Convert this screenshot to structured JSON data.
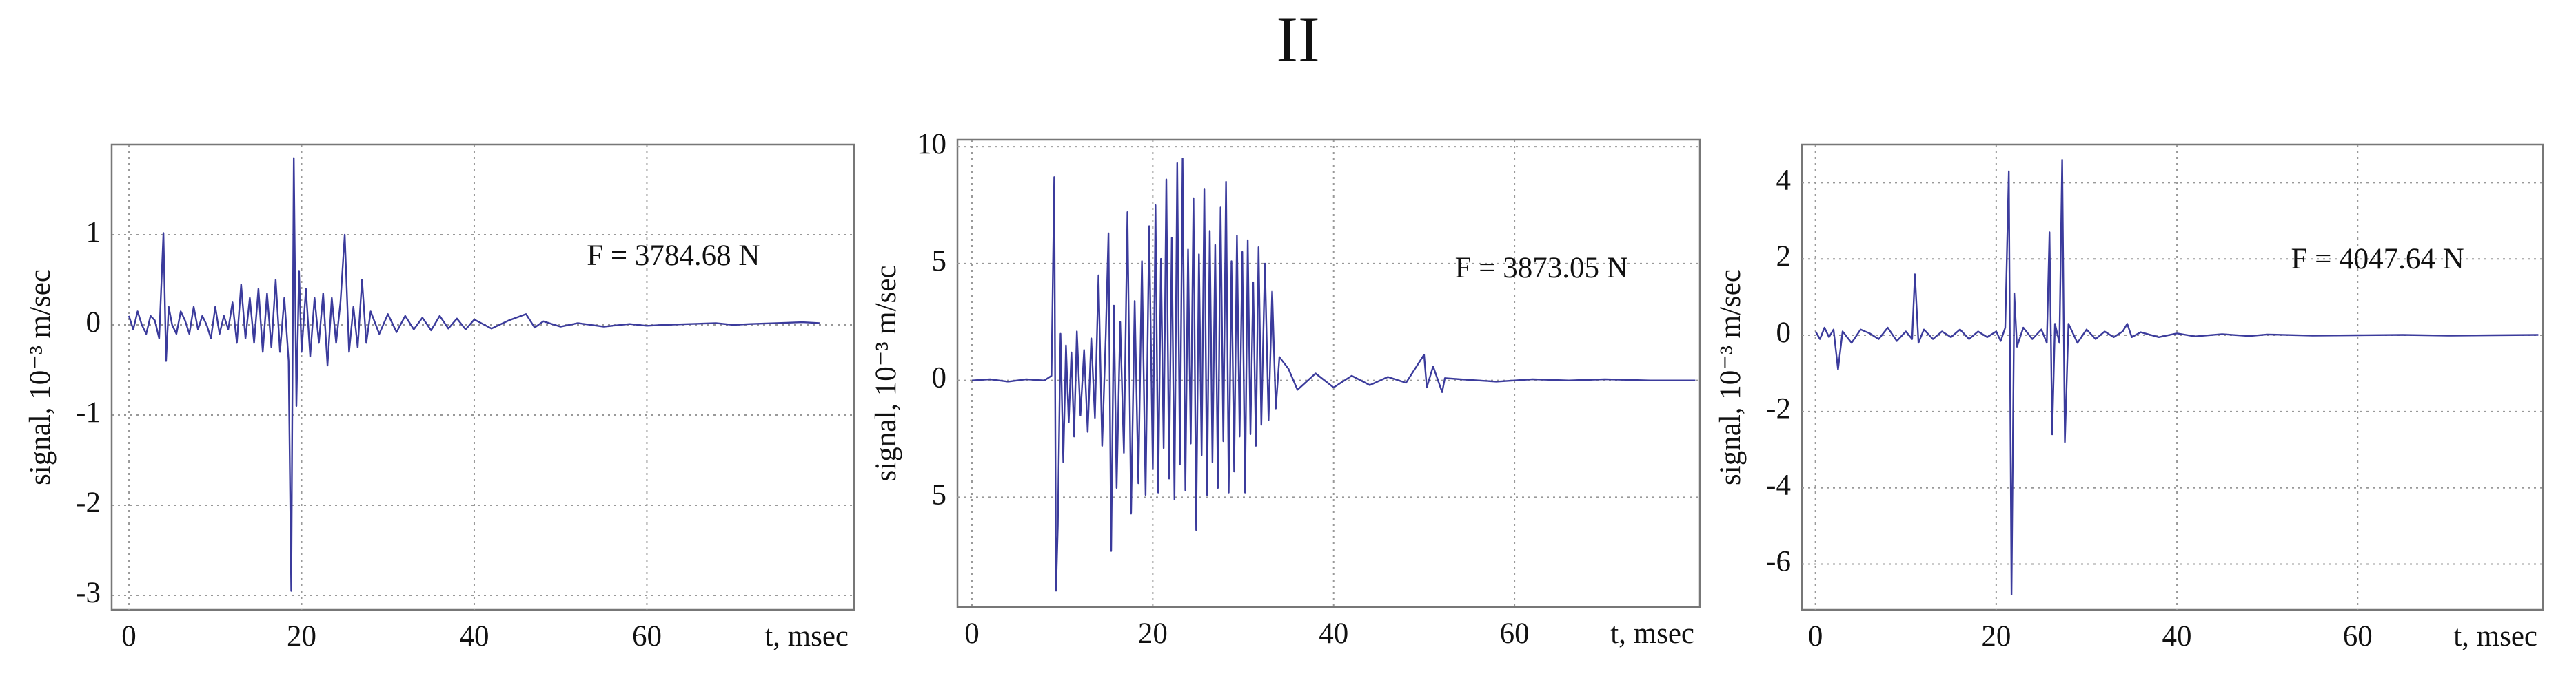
{
  "title": "II",
  "chart_data": [
    {
      "type": "line",
      "ylabel": "signal, 10⁻³ m/sec",
      "xlabel": "t, msec",
      "annotation": "F = 3784.68 N",
      "color": "#3b3b9c",
      "grid": true,
      "xlim": [
        -2,
        84
      ],
      "ylim": [
        -3.16,
        2.0
      ],
      "xticks": [
        0,
        20,
        40,
        60
      ],
      "yticks": [
        1,
        0,
        -1,
        -2,
        -3
      ],
      "x": [
        0,
        0.5,
        1,
        1.5,
        2,
        2.5,
        3,
        3.5,
        4,
        4.3,
        4.6,
        5,
        5.5,
        6,
        6.5,
        7,
        7.5,
        8,
        8.5,
        9,
        9.5,
        10,
        10.5,
        11,
        11.5,
        12,
        12.5,
        13,
        13.5,
        14,
        14.5,
        15,
        15.5,
        16,
        16.5,
        17,
        17.5,
        18,
        18.5,
        18.8,
        19.1,
        19.4,
        19.7,
        20,
        20.5,
        21,
        21.5,
        22,
        22.5,
        23,
        23.5,
        24,
        24.5,
        25,
        25.5,
        26,
        26.5,
        27,
        27.5,
        28,
        29,
        30,
        31,
        32,
        33,
        34,
        35,
        36,
        37,
        38,
        39,
        40,
        42,
        44,
        46,
        47,
        48,
        50,
        52,
        55,
        58,
        60,
        62,
        65,
        68,
        70,
        72,
        75,
        78,
        80
      ],
      "values": [
        0.1,
        -0.05,
        0.15,
        0,
        -0.1,
        0.1,
        0.05,
        -0.15,
        1.02,
        -0.4,
        0.2,
        0,
        -0.1,
        0.15,
        0.05,
        -0.1,
        0.2,
        -0.05,
        0.1,
        0,
        -0.15,
        0.2,
        -0.1,
        0.1,
        -0.05,
        0.25,
        -0.2,
        0.45,
        -0.15,
        0.3,
        -0.2,
        0.4,
        -0.3,
        0.35,
        -0.25,
        0.5,
        -0.3,
        0.3,
        -0.4,
        -2.95,
        1.85,
        -0.9,
        0.6,
        -0.3,
        0.4,
        -0.35,
        0.3,
        -0.2,
        0.35,
        -0.45,
        0.3,
        -0.2,
        0.25,
        1,
        -0.3,
        0.2,
        -0.25,
        0.5,
        -0.2,
        0.15,
        -0.1,
        0.12,
        -0.08,
        0.1,
        -0.05,
        0.08,
        -0.06,
        0.1,
        -0.04,
        0.07,
        -0.05,
        0.06,
        -0.04,
        0.05,
        0.12,
        -0.03,
        0.04,
        -0.02,
        0.02,
        -0.02,
        0.01,
        -0.01,
        0,
        0.01,
        0.02,
        0,
        0.01,
        0.02,
        0.03,
        0.02
      ]
    },
    {
      "type": "line",
      "ylabel": "signal, 10⁻³ m/sec",
      "xlabel": "t, msec",
      "annotation": "F = 3873.05 N",
      "color": "#3b3b9c",
      "grid": true,
      "xlim": [
        -1.6,
        80.5
      ],
      "ylim": [
        -9.7,
        10.3
      ],
      "xticks": [
        0,
        20,
        40,
        60
      ],
      "yticks": [
        10,
        5,
        0,
        {
          "value": -5,
          "label": "5"
        }
      ],
      "x": [
        0,
        2,
        4,
        6,
        8,
        8.8,
        9.1,
        9.3,
        9.5,
        9.8,
        10.1,
        10.4,
        10.7,
        11,
        11.3,
        11.6,
        12,
        12.4,
        12.8,
        13.2,
        13.6,
        14,
        14.4,
        14.8,
        15.1,
        15.4,
        15.7,
        16,
        16.4,
        16.8,
        17.2,
        17.6,
        18,
        18.4,
        18.8,
        19.2,
        19.6,
        20,
        20.3,
        20.6,
        20.9,
        21.2,
        21.5,
        21.8,
        22.1,
        22.4,
        22.7,
        23,
        23.3,
        23.6,
        23.9,
        24.2,
        24.5,
        24.8,
        25.1,
        25.4,
        25.7,
        26,
        26.3,
        26.6,
        26.9,
        27.2,
        27.5,
        27.8,
        28.1,
        28.4,
        28.7,
        29,
        29.3,
        29.6,
        29.9,
        30.2,
        30.5,
        30.8,
        31.1,
        31.4,
        31.7,
        32,
        32.4,
        32.8,
        33.2,
        33.6,
        34,
        35,
        36,
        38,
        40,
        42,
        44,
        46,
        48,
        50,
        50.3,
        51,
        52,
        52.3,
        54,
        58,
        62,
        66,
        70,
        75,
        80
      ],
      "values": [
        0,
        0.05,
        -0.05,
        0.05,
        0,
        0.2,
        8.7,
        -9,
        -6.2,
        2,
        -3.5,
        1.5,
        -1.8,
        1.2,
        -2.4,
        2.1,
        -1.5,
        1.3,
        -2.2,
        1.8,
        -1.6,
        4.5,
        -2.8,
        1.9,
        6.3,
        -7.3,
        3.2,
        -4.6,
        2.5,
        -3.1,
        7.2,
        -5.7,
        3.4,
        -4.4,
        5.1,
        -4.9,
        6.6,
        -3.8,
        7.5,
        -4.8,
        5.2,
        -2.9,
        8.6,
        -4.2,
        6.1,
        -5.1,
        9.3,
        -3.6,
        9.5,
        -4.7,
        5.6,
        -2.7,
        7.8,
        -6.4,
        5.4,
        -3.2,
        8.2,
        -4.9,
        6.4,
        -3.5,
        5.8,
        -4.6,
        7.4,
        -2.6,
        8.5,
        -4.8,
        5.1,
        -3.9,
        6.2,
        -2.4,
        5.5,
        -4.8,
        6,
        -2.3,
        4.2,
        -2.8,
        5.7,
        -1.9,
        5,
        -1.7,
        3.8,
        -1.2,
        1,
        0.5,
        -0.4,
        0.3,
        -0.3,
        0.2,
        -0.2,
        0.15,
        -0.1,
        1.1,
        -0.3,
        0.6,
        -0.5,
        0.1,
        0.05,
        -0.05,
        0.05,
        0,
        0.05,
        0,
        0
      ]
    },
    {
      "type": "line",
      "ylabel": "signal, 10⁻³ m/sec",
      "xlabel": "t, msec",
      "annotation": "F = 4047.64 N",
      "color": "#3b3b9c",
      "grid": true,
      "xlim": [
        -1.5,
        80.5
      ],
      "ylim": [
        -7.2,
        5.0
      ],
      "xticks": [
        0,
        20,
        40,
        60
      ],
      "yticks": [
        4,
        2,
        0,
        -2,
        -4,
        -6
      ],
      "x": [
        0,
        0.5,
        1,
        1.5,
        2,
        2.5,
        3,
        4,
        5,
        6,
        7,
        8,
        9,
        10,
        10.7,
        11,
        11.4,
        12,
        13,
        14,
        15,
        16,
        17,
        18,
        19,
        20,
        20.5,
        21,
        21.4,
        21.7,
        22,
        22.3,
        23,
        24,
        25,
        25.6,
        25.9,
        26.2,
        26.5,
        27,
        27.3,
        27.6,
        28,
        29,
        30,
        31,
        32,
        33,
        34,
        34.5,
        35,
        36,
        38,
        40,
        42,
        45,
        48,
        50,
        55,
        60,
        65,
        70,
        75,
        80
      ],
      "values": [
        0.1,
        -0.1,
        0.2,
        -0.05,
        0.15,
        -0.9,
        0.1,
        -0.2,
        0.15,
        0.05,
        -0.1,
        0.2,
        -0.15,
        0.1,
        -0.1,
        1.6,
        -0.2,
        0.15,
        -0.1,
        0.1,
        -0.05,
        0.15,
        -0.1,
        0.1,
        -0.05,
        0.1,
        -0.15,
        0.2,
        4.3,
        -6.8,
        1.1,
        -0.3,
        0.2,
        -0.1,
        0.15,
        -0.2,
        2.7,
        -2.6,
        0.3,
        -0.2,
        4.6,
        -2.8,
        0.3,
        -0.2,
        0.15,
        -0.1,
        0.1,
        -0.05,
        0.1,
        0.3,
        -0.05,
        0.08,
        -0.05,
        0.05,
        -0.03,
        0.03,
        -0.02,
        0.02,
        -0.01,
        0,
        0.01,
        -0.01,
        0,
        0.01
      ]
    }
  ]
}
